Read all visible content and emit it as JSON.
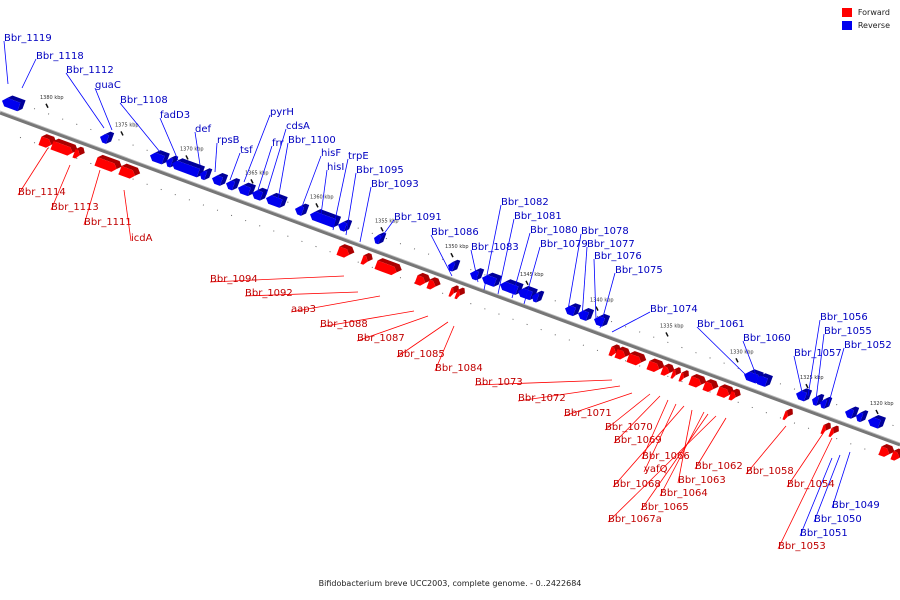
{
  "colors": {
    "forward": "#ff0000",
    "reverse": "#0000ee",
    "forward_label": "#c00000",
    "reverse_label": "#0000c0",
    "axis": "#777777"
  },
  "legend": {
    "forward": "Forward",
    "reverse": "Reverse"
  },
  "caption": "Bifidobacterium breve UCC2003, complete genome. - 0..2422684",
  "ticks": [
    "1380 kbp",
    "1375 kbp",
    "1370 kbp",
    "1365 kbp",
    "1360 kbp",
    "1355 kbp",
    "1350 kbp",
    "1345 kbp",
    "1340 kbp",
    "1335 kbp",
    "1330 kbp",
    "1325 kbp",
    "1320 kbp"
  ],
  "reverse_labels": [
    "Bbr_1119",
    "Bbr_1118",
    "Bbr_1112",
    "guaC",
    "Bbr_1108",
    "fadD3",
    "def",
    "rpsB",
    "tsf",
    "pyrH",
    "frr",
    "cdsA",
    "Bbr_1100",
    "hisF",
    "hisI",
    "trpE",
    "Bbr_1095",
    "Bbr_1093",
    "Bbr_1091",
    "Bbr_1086",
    "Bbr_1083",
    "Bbr_1082",
    "Bbr_1081",
    "Bbr_1080",
    "Bbr_1079",
    "Bbr_1078",
    "Bbr_1077",
    "Bbr_1076",
    "Bbr_1075",
    "Bbr_1074",
    "Bbr_1061",
    "Bbr_1060",
    "Bbr_1057",
    "Bbr_1056",
    "Bbr_1055",
    "Bbr_1052",
    "Bbr_1049",
    "Bbr_1050",
    "Bbr_1051"
  ],
  "forward_labels": [
    "Bbr_1114",
    "Bbr_1113",
    "Bbr_1111",
    "icdA",
    "Bbr_1094",
    "Bbr_1092",
    "aap3",
    "Bbr_1088",
    "Bbr_1087",
    "Bbr_1085",
    "Bbr_1084",
    "Bbr_1073",
    "Bbr_1072",
    "Bbr_1071",
    "Bbr_1070",
    "Bbr_1069",
    "Bbr_1066",
    "yafQ",
    "Bbr_1068",
    "Bbr_1063",
    "Bbr_1064",
    "Bbr_1065",
    "Bbr_1067a",
    "Bbr_1062",
    "Bbr_1058",
    "Bbr_1054",
    "Bbr_1053"
  ]
}
